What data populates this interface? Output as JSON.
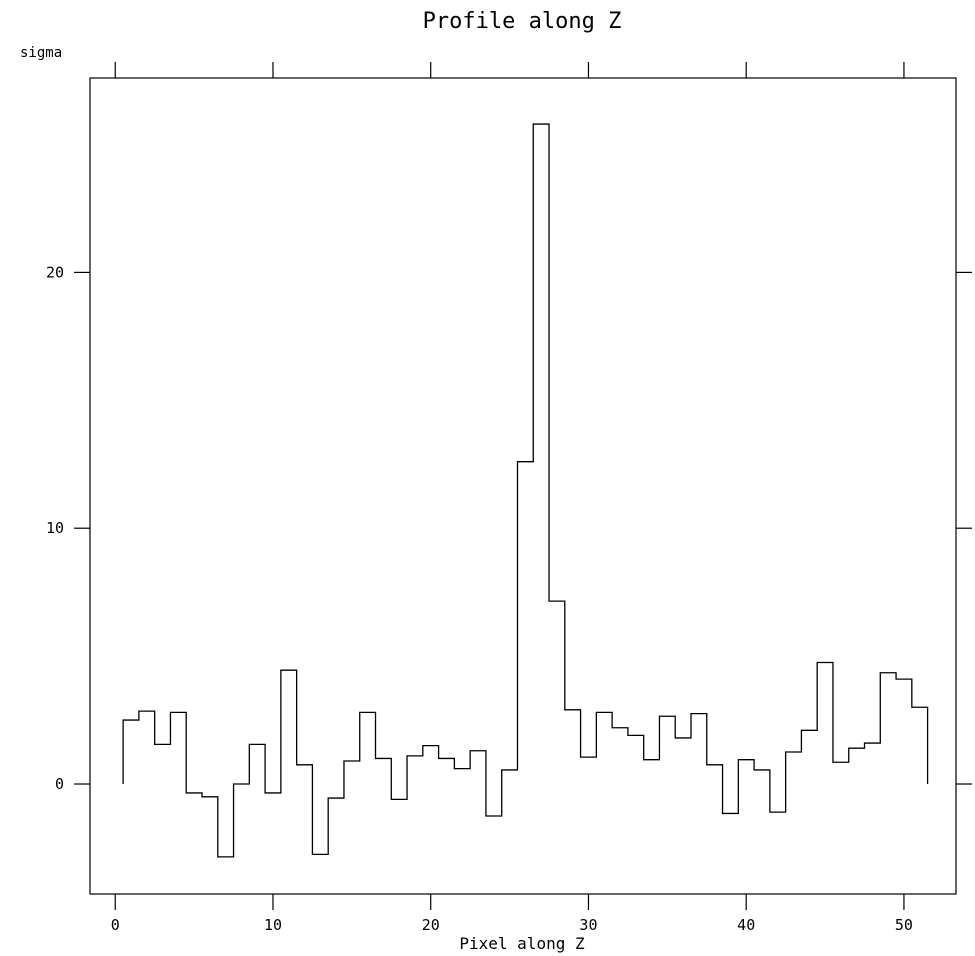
{
  "chart_data": {
    "type": "line",
    "title": "Profile along Z",
    "xlabel": "Pixel along Z",
    "ylabel": "sigma",
    "xlim": [
      -1.6,
      53.3
    ],
    "ylim": [
      -4.3,
      27.6
    ],
    "xticks": [
      0,
      10,
      20,
      30,
      40,
      50
    ],
    "xtick_labels": [
      "0",
      "10",
      "20",
      "30",
      "40",
      "50"
    ],
    "yticks": [
      0,
      10,
      20
    ],
    "ytick_labels": [
      "0",
      "10",
      "20"
    ],
    "grid": false,
    "step_style": "histogram",
    "series": [
      {
        "x": [
          1,
          2,
          3,
          4,
          5,
          6,
          7,
          8,
          9,
          10,
          11,
          12,
          13,
          14,
          15,
          16,
          17,
          18,
          19,
          20,
          21,
          22,
          23,
          24,
          25,
          26,
          27,
          28,
          29,
          30,
          31,
          32,
          33,
          34,
          35,
          36,
          37,
          38,
          39,
          40,
          41,
          42,
          43,
          44,
          45,
          46,
          47,
          48,
          49,
          50,
          51
        ],
        "y": [
          2.5,
          2.85,
          1.55,
          2.8,
          -0.35,
          -0.5,
          -2.85,
          0.0,
          1.55,
          -0.35,
          4.45,
          0.75,
          -2.75,
          -0.55,
          0.9,
          2.8,
          1.0,
          -0.6,
          1.1,
          1.5,
          1.0,
          0.6,
          1.3,
          -1.25,
          0.55,
          12.6,
          25.8,
          7.15,
          2.9,
          1.05,
          2.8,
          2.2,
          1.9,
          0.95,
          2.65,
          1.8,
          2.75,
          0.75,
          -1.15,
          0.95,
          0.55,
          -1.1,
          1.25,
          2.1,
          4.75,
          0.85,
          1.4,
          1.6,
          4.35,
          4.1,
          3.0
        ]
      }
    ]
  }
}
